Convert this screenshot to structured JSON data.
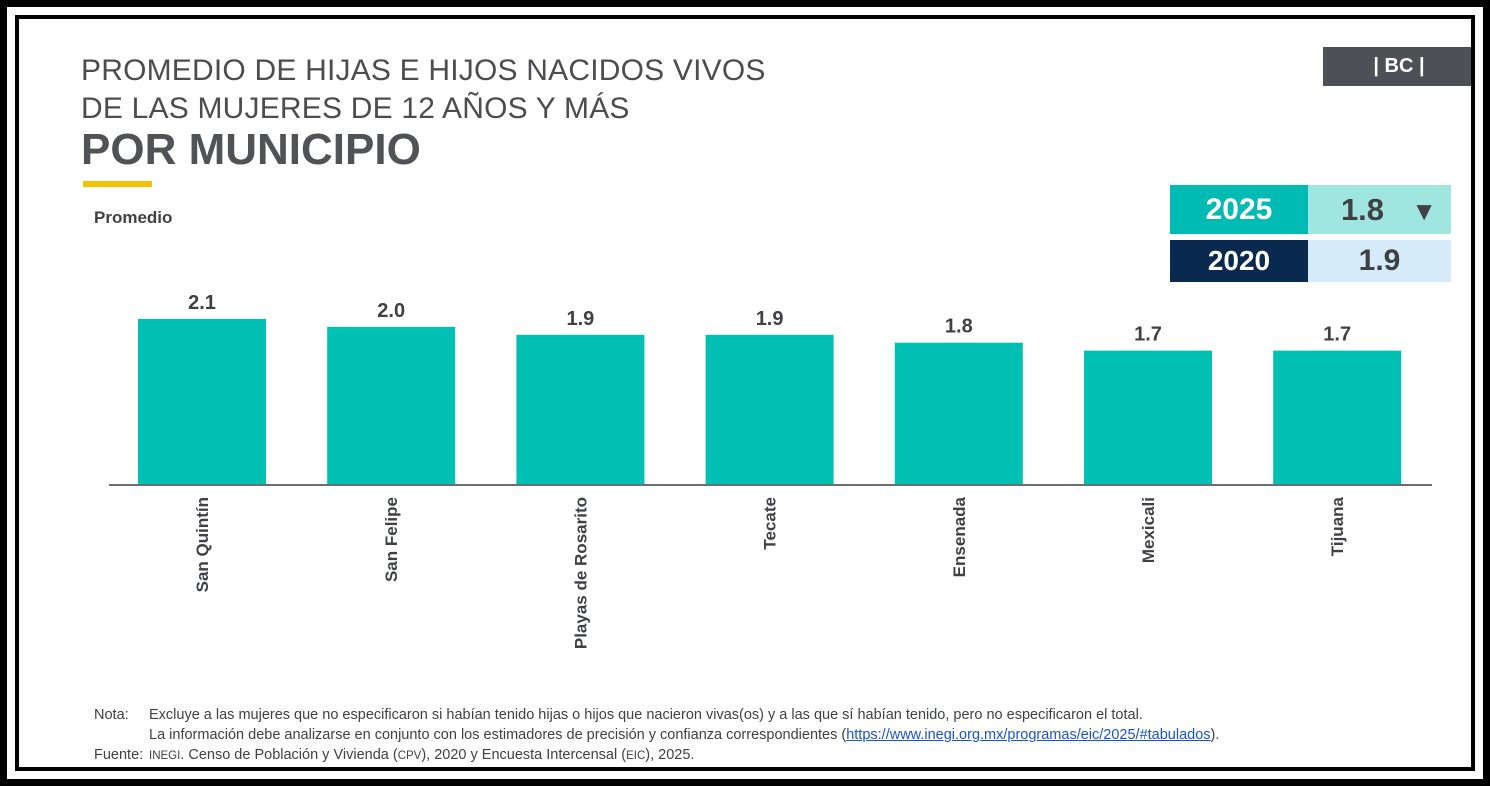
{
  "badge": "| BC |",
  "title": {
    "line1": "PROMEDIO DE HIJAS E HIJOS NACIDOS VIVOS",
    "line2": "DE LAS MUJERES DE 12 AÑOS Y MÁS",
    "line3": "POR MUNICIPIO"
  },
  "kpi": {
    "row1": {
      "year": "2025",
      "value": "1.8",
      "trend_icon": "down-triangle-icon",
      "trend_symbol": "▼"
    },
    "row2": {
      "year": "2020",
      "value": "1.9"
    }
  },
  "colors": {
    "bar": "#00bfb3",
    "accent_yellow": "#f5c400",
    "kpi_2025": "#00bbb4",
    "kpi_2020": "#092a4e",
    "badge": "#4d5054"
  },
  "chart_data": {
    "type": "bar",
    "ylabel": "Promedio",
    "categories": [
      "San Quintín",
      "San Felipe",
      "Playas de Rosarito",
      "Tecate",
      "Ensenada",
      "Mexicali",
      "Tijuana"
    ],
    "values": [
      2.1,
      2.0,
      1.9,
      1.9,
      1.8,
      1.7,
      1.7
    ],
    "labels": [
      "2.1",
      "2.0",
      "1.9",
      "1.9",
      "1.8",
      "1.7",
      "1.7"
    ],
    "ylim": [
      0,
      2.1
    ],
    "grid": false,
    "legend": "none",
    "tick_label_rotation": "vertical"
  },
  "notes": {
    "nota_label": "Nota:",
    "nota_line1": "Excluye a las mujeres que no especificaron si habían tenido hijas o hijos que nacieron vivas(os) y a las que sí habían tenido, pero no especificaron el total.",
    "nota_line2_prefix": "La información debe analizarse en conjunto con los estimadores de precisión y confianza correspondientes (",
    "nota_link": "https://www.inegi.org.mx/programas/eic/2025/#tabulados",
    "nota_line2_suffix": ").",
    "fuente_label": "Fuente:",
    "fuente_org": "INEGI",
    "fuente_text1": ". Censo de Población y Vivienda (",
    "fuente_cpv": "CPV",
    "fuente_text2": "), 2020 y Encuesta Intercensal (",
    "fuente_eic": "EIC",
    "fuente_text3": "), 2025."
  }
}
